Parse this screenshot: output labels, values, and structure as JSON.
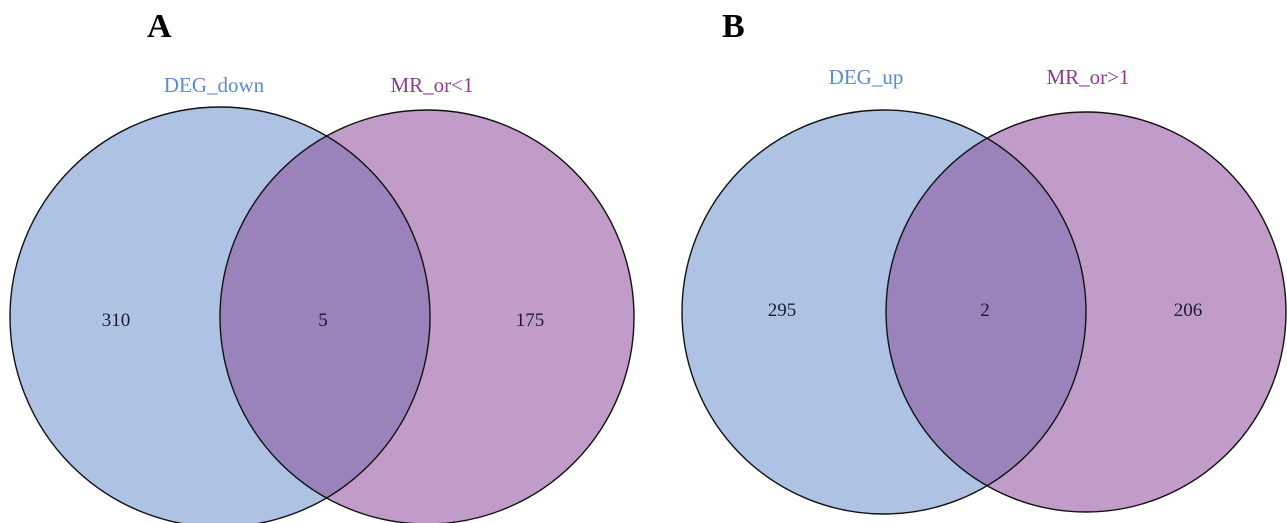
{
  "panels": [
    {
      "letter": "A",
      "left_set": {
        "label": "DEG_down",
        "color": "#AEC3E4",
        "label_color": "#5B8CCB"
      },
      "right_set": {
        "label": "MR_or<1",
        "color": "#C29CC8",
        "label_color": "#8A3D93"
      },
      "counts": {
        "left_only": "310",
        "overlap": "5",
        "right_only": "175"
      },
      "overlap_color": "#9A82BB"
    },
    {
      "letter": "B",
      "left_set": {
        "label": "DEG_up",
        "color": "#AEC3E4",
        "label_color": "#5B8CCB"
      },
      "right_set": {
        "label": "MR_or>1",
        "color": "#C29CC8",
        "label_color": "#8A3D93"
      },
      "counts": {
        "left_only": "295",
        "overlap": "2",
        "right_only": "206"
      },
      "overlap_color": "#9A82BB"
    }
  ]
}
